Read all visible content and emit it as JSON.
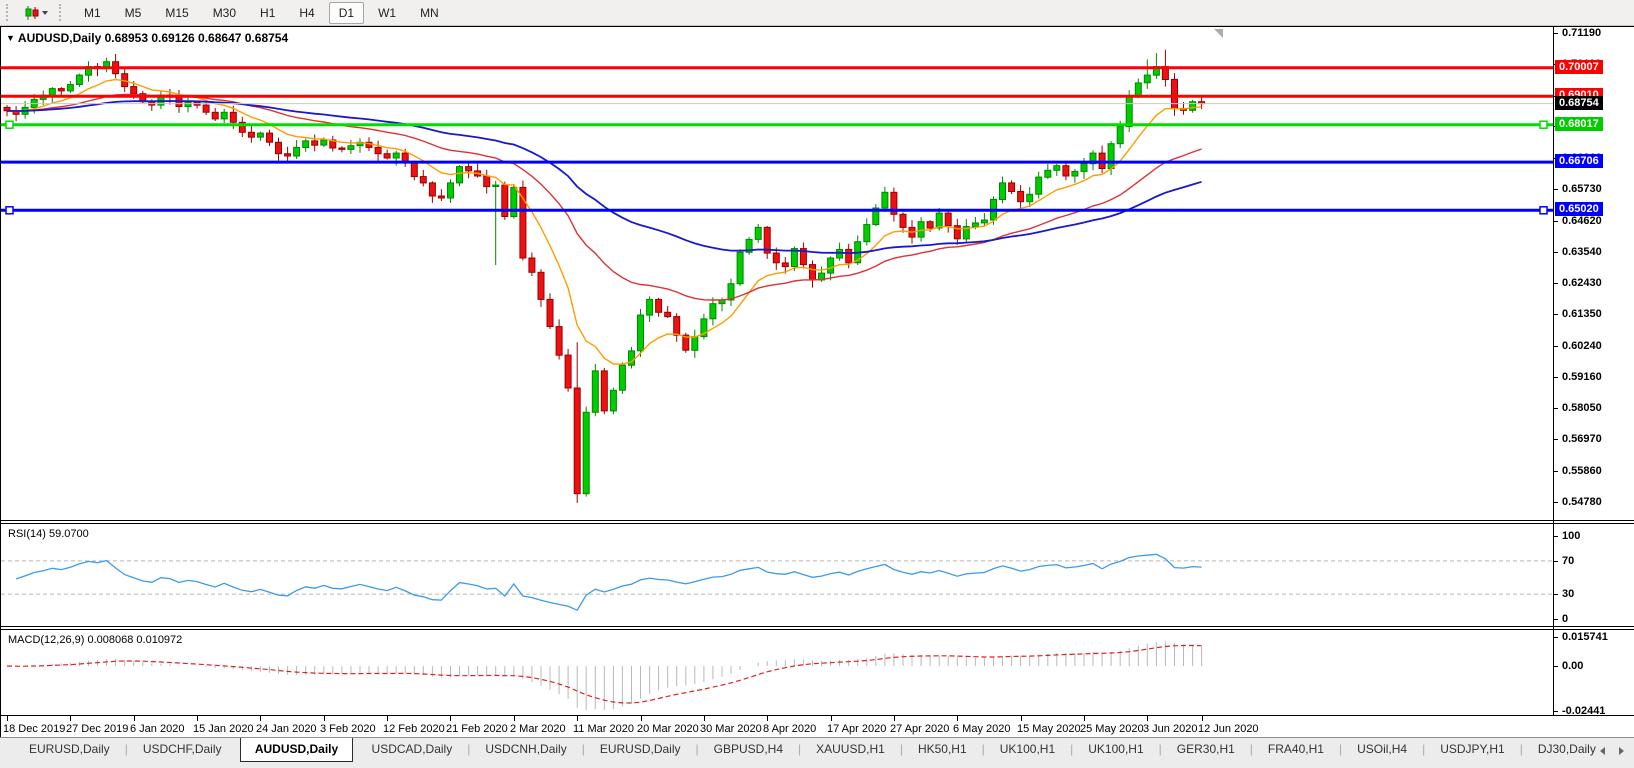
{
  "toolbar": {
    "timeframes": [
      "M1",
      "M5",
      "M15",
      "M30",
      "H1",
      "H4",
      "D1",
      "W1",
      "MN"
    ],
    "active_timeframe": "D1"
  },
  "chart_header": {
    "collapse_glyph": "▼",
    "symbol": "AUDUSD,Daily",
    "ohlc": "0.68953 0.69126 0.68647 0.68754"
  },
  "price_axis": {
    "ticks": [
      "0.71190",
      "0.70110",
      "0.69000",
      "0.67920",
      "0.66810",
      "0.65730",
      "0.64620",
      "0.63540",
      "0.62430",
      "0.61350",
      "0.60240",
      "0.59160",
      "0.58050",
      "0.56970",
      "0.55860",
      "0.54780"
    ],
    "badges": [
      {
        "value": "0.70007",
        "bg": "#ff0000"
      },
      {
        "value": "0.69010",
        "bg": "#ff0000"
      },
      {
        "value": "0.68754",
        "bg": "#000000"
      },
      {
        "value": "0.68017",
        "bg": "#00cc00"
      },
      {
        "value": "0.66706",
        "bg": "#0000ff"
      },
      {
        "value": "0.65020",
        "bg": "#0000ff"
      }
    ]
  },
  "indicators": {
    "rsi_label": "RSI(14) 59.0700",
    "rsi_ticks": [
      "100",
      "70",
      "30",
      "0"
    ],
    "macd_label": "MACD(12,26,9) 0.008068 0.010972",
    "macd_ticks": [
      "0.015741",
      "0.00",
      "-0.02441"
    ]
  },
  "date_axis": {
    "labels": [
      "18 Dec 2019",
      "27 Dec 2019",
      "6 Jan 2020",
      "15 Jan 2020",
      "24 Jan 2020",
      "3 Feb 2020",
      "12 Feb 2020",
      "21 Feb 2020",
      "2 Mar 2020",
      "11 Mar 2020",
      "20 Mar 2020",
      "30 Mar 2020",
      "8 Apr 2020",
      "17 Apr 2020",
      "27 Apr 2020",
      "6 May 2020",
      "15 May 2020",
      "25 May 2020",
      "3 Jun 2020",
      "12 Jun 2020"
    ],
    "tick_indices": [
      0,
      7,
      14,
      21,
      28,
      35,
      42,
      49,
      56,
      63,
      70,
      77,
      84,
      91,
      98,
      105,
      112,
      119,
      126,
      132
    ]
  },
  "tabs": {
    "items": [
      "EURUSD,Daily",
      "USDCHF,Daily",
      "AUDUSD,Daily",
      "USDCAD,Daily",
      "USDCNH,Daily",
      "EURUSD,Daily",
      "GBPUSD,H4",
      "XAUUSD,H1",
      "HK50,H1",
      "UK100,H1",
      "UK100,H1",
      "GER30,H1",
      "FRA40,H1",
      "USOil,H4",
      "USDJPY,H1",
      "DJ30,Daily"
    ],
    "active_index": 2
  },
  "chart_data": {
    "type": "candlestick",
    "symbol": "AUDUSD",
    "timeframe": "Daily",
    "current_bar": {
      "open": 0.68953,
      "high": 0.69126,
      "low": 0.68647,
      "close": 0.68754
    },
    "ylim": [
      0.5418,
      0.71435
    ],
    "first_open": 0.6862,
    "closes": [
      0.685,
      0.6838,
      0.6862,
      0.689,
      0.6905,
      0.6928,
      0.692,
      0.6942,
      0.6975,
      0.7005,
      0.6998,
      0.7022,
      0.698,
      0.6935,
      0.691,
      0.6882,
      0.687,
      0.6905,
      0.6898,
      0.6865,
      0.688,
      0.687,
      0.6845,
      0.6822,
      0.6845,
      0.681,
      0.6775,
      0.6758,
      0.6772,
      0.674,
      0.67,
      0.6692,
      0.6722,
      0.6745,
      0.673,
      0.6748,
      0.672,
      0.6715,
      0.6728,
      0.674,
      0.6722,
      0.67,
      0.6685,
      0.6702,
      0.6668,
      0.662,
      0.6598,
      0.6552,
      0.6545,
      0.6598,
      0.6655,
      0.664,
      0.6622,
      0.6585,
      0.659,
      0.648,
      0.6582,
      0.6335,
      0.6285,
      0.619,
      0.6095,
      0.5995,
      0.588,
      0.551,
      0.5795,
      0.594,
      0.58,
      0.5872,
      0.596,
      0.601,
      0.6135,
      0.619,
      0.6145,
      0.613,
      0.6065,
      0.6012,
      0.606,
      0.6122,
      0.6175,
      0.6188,
      0.6245,
      0.6355,
      0.64,
      0.6442,
      0.6352,
      0.6318,
      0.6305,
      0.6368,
      0.6312,
      0.6258,
      0.6282,
      0.6335,
      0.6365,
      0.6318,
      0.6392,
      0.6452,
      0.651,
      0.6565,
      0.6488,
      0.6442,
      0.6408,
      0.6462,
      0.644,
      0.6492,
      0.6448,
      0.6402,
      0.6445,
      0.6458,
      0.6468,
      0.654,
      0.6598,
      0.6568,
      0.6532,
      0.6558,
      0.6618,
      0.6642,
      0.6658,
      0.6622,
      0.6638,
      0.6665,
      0.6702,
      0.6648,
      0.6735,
      0.6795,
      0.69,
      0.6948,
      0.6975,
      0.7005,
      0.696,
      0.6858,
      0.6852,
      0.6882,
      0.68754
    ],
    "wick_overrides": {
      "11": {
        "high": 0.7036
      },
      "54": {
        "low": 0.631
      },
      "63": {
        "high": 0.604,
        "low": 0.5478
      },
      "126": {
        "high": 0.703
      },
      "127": {
        "high": 0.7052
      },
      "128": {
        "high": 0.7064
      }
    },
    "levels": [
      {
        "price": 0.70007,
        "line": "#ff0000",
        "w": 3
      },
      {
        "price": 0.6901,
        "line": "#ff0000",
        "w": 3
      },
      {
        "price": 0.68754,
        "line": "#c8c8c8",
        "w": 1
      },
      {
        "price": 0.68017,
        "line": "#00dd00",
        "w": 3,
        "handles": true
      },
      {
        "price": 0.66706,
        "line": "#0000ff",
        "w": 3
      },
      {
        "price": 0.6502,
        "line": "#0000ff",
        "w": 3,
        "handles": true
      }
    ],
    "ma": {
      "fast": {
        "period": 10,
        "color": "#ff9d00"
      },
      "medium": {
        "period": 30,
        "color": "#dd3333"
      },
      "slow": {
        "period": 60,
        "color": "#1818cc"
      }
    },
    "rsi": {
      "period": 14,
      "current": 59.07,
      "color": "#3e9be9",
      "levels": [
        70,
        30
      ],
      "range": [
        0,
        100
      ]
    },
    "macd": {
      "fast": 12,
      "slow": 26,
      "signal": 9,
      "current_main": 0.008068,
      "current_signal": 0.010972,
      "range": [
        -0.0265,
        0.0196
      ],
      "hist_color": "#b8b8b8",
      "signal_color": "#dd2222"
    },
    "candle_colors": {
      "up": "#00cc00",
      "up_border": "#008800",
      "down": "#ee1111",
      "down_border": "#990000"
    }
  }
}
